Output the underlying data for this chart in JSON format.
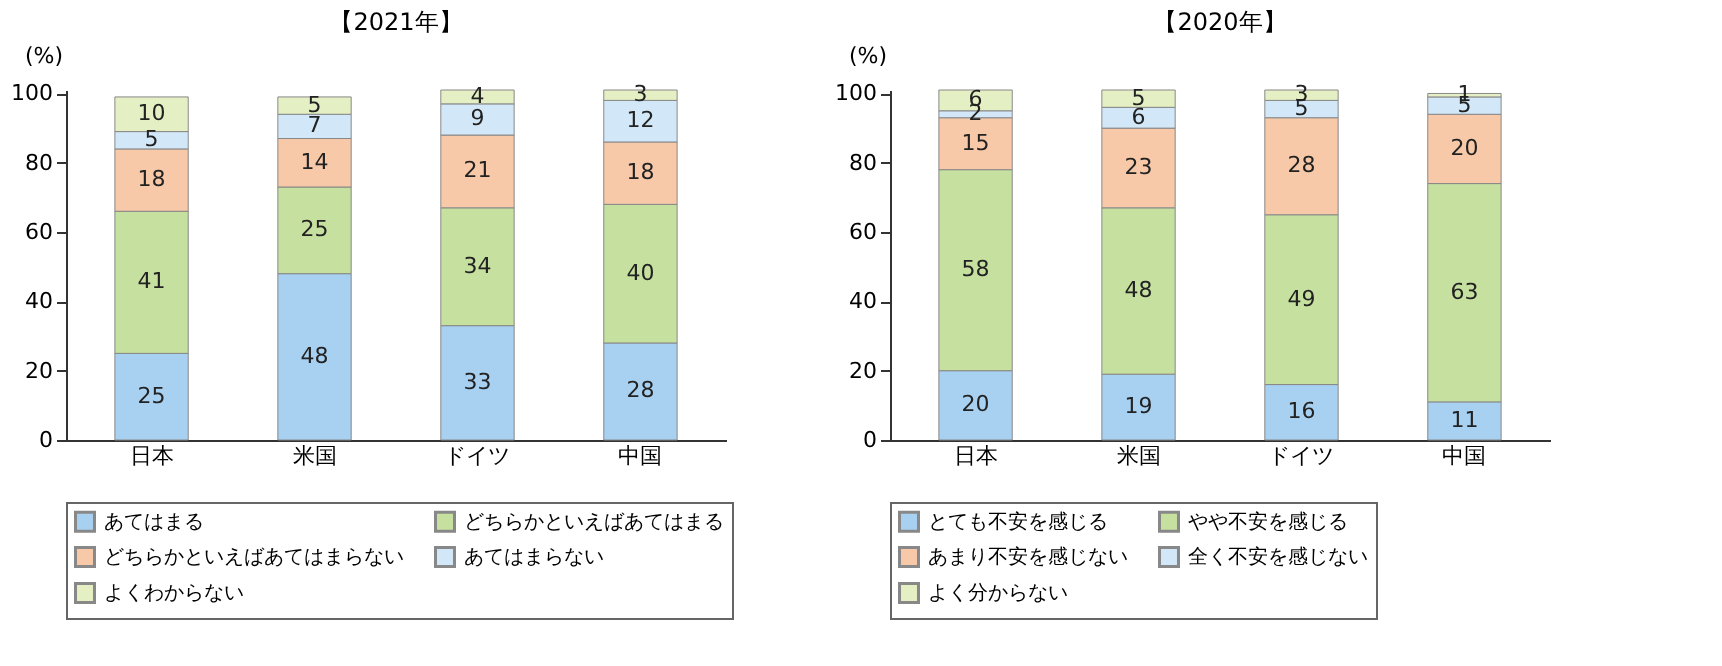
{
  "chart_data": [
    {
      "type": "bar",
      "title": "【2021年】",
      "ylabel": "(%)",
      "categories": [
        "日本",
        "米国",
        "ドイツ",
        "中国"
      ],
      "stacked": true,
      "data_labels": true,
      "ylim": [
        0,
        101
      ],
      "yticks": [
        0,
        20,
        40,
        60,
        80,
        100
      ],
      "grid": false,
      "legend": "bottom",
      "series": [
        {
          "name": "あてはまる",
          "color": "#a8d0f0",
          "values": [
            25,
            48,
            33,
            28
          ]
        },
        {
          "name": "どちらかといえばあてはまる",
          "color": "#c6e0a0",
          "values": [
            41,
            25,
            34,
            40
          ]
        },
        {
          "name": "どちらかといえばあてはまらない",
          "color": "#f7c9a8",
          "values": [
            18,
            14,
            21,
            18
          ]
        },
        {
          "name": "あてはまらない",
          "color": "#d2e8f8",
          "values": [
            5,
            7,
            9,
            12
          ]
        },
        {
          "name": "よくわからない",
          "color": "#e4f0c4",
          "values": [
            10,
            5,
            4,
            3
          ]
        }
      ]
    },
    {
      "type": "bar",
      "title": "【2020年】",
      "ylabel": "(%)",
      "categories": [
        "日本",
        "米国",
        "ドイツ",
        "中国"
      ],
      "stacked": true,
      "data_labels": true,
      "ylim": [
        0,
        101
      ],
      "yticks": [
        0,
        20,
        40,
        60,
        80,
        100
      ],
      "grid": false,
      "legend": "bottom",
      "series": [
        {
          "name": "とても不安を感じる",
          "color": "#a8d0f0",
          "values": [
            20,
            19,
            16,
            11
          ]
        },
        {
          "name": "やや不安を感じる",
          "color": "#c6e0a0",
          "values": [
            58,
            48,
            49,
            63
          ]
        },
        {
          "name": "あまり不安を感じない",
          "color": "#f7c9a8",
          "values": [
            15,
            23,
            28,
            20
          ]
        },
        {
          "name": "全く不安を感じない",
          "color": "#d2e8f8",
          "values": [
            2,
            6,
            5,
            5
          ]
        },
        {
          "name": "よく分からない",
          "color": "#e4f0c4",
          "values": [
            6,
            5,
            3,
            1
          ]
        }
      ]
    }
  ]
}
